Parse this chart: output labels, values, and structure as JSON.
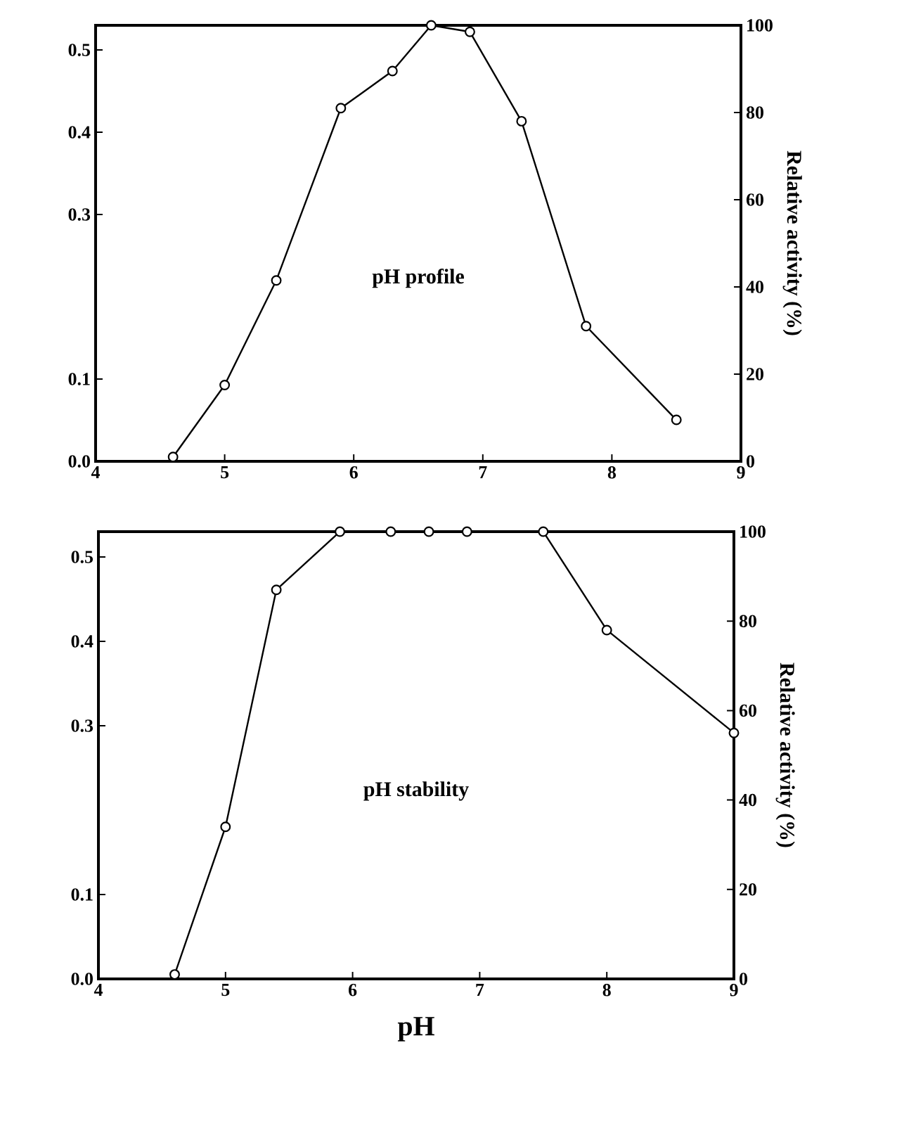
{
  "chart_data": [
    {
      "type": "line",
      "xlim": [
        4,
        9
      ],
      "xticks": [
        4,
        5,
        6,
        7,
        8,
        9
      ],
      "ylim": [
        0,
        0.53
      ],
      "yticks": [
        {
          "value": 0,
          "label": "0.0"
        },
        0.1,
        0.3,
        0.4,
        0.5
      ],
      "y2lim": [
        0,
        100
      ],
      "y2ticks": [
        0,
        20,
        40,
        60,
        80,
        100
      ],
      "y2label": "Relative activity (%)",
      "annotations": [
        "pH profile"
      ],
      "marker": "circle",
      "line_style": "solid",
      "grid": false,
      "legend": false,
      "series": [
        {
          "color": "#000000",
          "axis": "y2",
          "x": [
            4.6,
            5.0,
            5.4,
            5.9,
            6.3,
            6.6,
            6.9,
            7.3,
            7.8,
            8.5
          ],
          "values": [
            1,
            17.5,
            41.5,
            81,
            89.5,
            100,
            98.5,
            78,
            31,
            9.5
          ]
        }
      ]
    },
    {
      "type": "line",
      "xlim": [
        4,
        9
      ],
      "xticks": [
        4,
        5,
        6,
        7,
        8,
        9
      ],
      "ylim": [
        0,
        0.53
      ],
      "yticks": [
        {
          "value": 0,
          "label": "0.0"
        },
        0.1,
        0.3,
        0.4,
        0.5
      ],
      "y2lim": [
        0,
        100
      ],
      "y2ticks": [
        0,
        20,
        40,
        60,
        80,
        100
      ],
      "xlabel": "pH",
      "y2label": "Relative activity (%)",
      "annotations": [
        "pH stability"
      ],
      "marker": "circle",
      "line_style": "solid",
      "grid": false,
      "legend": false,
      "series": [
        {
          "color": "#000000",
          "axis": "y2",
          "x": [
            4.6,
            5.0,
            5.4,
            5.9,
            6.3,
            6.6,
            6.9,
            7.5,
            8.0,
            9.0
          ],
          "values": [
            1,
            34,
            87,
            100,
            100,
            100,
            100,
            100,
            78,
            55
          ]
        }
      ]
    }
  ]
}
